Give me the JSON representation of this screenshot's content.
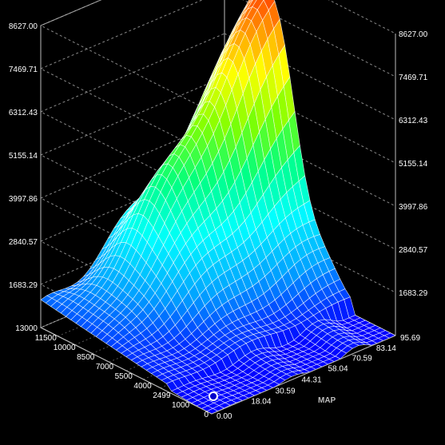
{
  "chart_data": {
    "type": "surface3d",
    "z_axis": {
      "ticks": [
        "8627.00",
        "7469.71",
        "6312.43",
        "5155.14",
        "3997.86",
        "2840.57",
        "1683.29"
      ],
      "range": [
        526,
        8627
      ]
    },
    "rpm_axis": {
      "ticks": [
        "13000",
        "11500",
        "10000",
        "8500",
        "7000",
        "5500",
        "4000",
        "2499",
        "1000",
        "0"
      ]
    },
    "map_axis": {
      "label": "MAP",
      "ticks": [
        "0.00",
        "18.04",
        "30.59",
        "44.31",
        "58.04",
        "70.59",
        "83.14",
        "95.69"
      ],
      "range": [
        0,
        95.69
      ]
    },
    "surface_peak": {
      "rpm": 10000,
      "map": 95.69,
      "value": 8627
    },
    "marker": {
      "rpm": 0,
      "map": 0
    },
    "colormap": [
      "#0000ff",
      "#00a0ff",
      "#00ffff",
      "#00ff80",
      "#80ff00",
      "#ffff00",
      "#ff8000",
      "#ff0000"
    ]
  }
}
